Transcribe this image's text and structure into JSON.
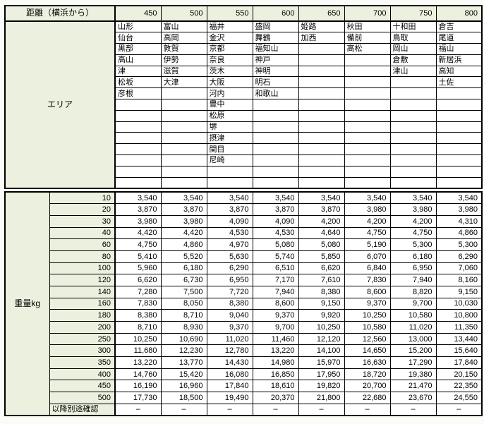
{
  "header": {
    "distance_label": "距離（横浜から）",
    "distances": [
      "450",
      "500",
      "550",
      "600",
      "650",
      "700",
      "750",
      "800"
    ]
  },
  "area": {
    "label": "エリア",
    "rows": [
      [
        "山形",
        "富山",
        "福井",
        "盛岡",
        "姫路",
        "秋田",
        "十和田",
        "倉吉"
      ],
      [
        "仙台",
        "高岡",
        "金沢",
        "舞鶴",
        "加西",
        "備前",
        "鳥取",
        "尾道"
      ],
      [
        "黒部",
        "敦賀",
        "京都",
        "福知山",
        "",
        "高松",
        "岡山",
        "福山"
      ],
      [
        "高山",
        "伊勢",
        "奈良",
        "神戸",
        "",
        "",
        "倉敷",
        "新居浜"
      ],
      [
        "津",
        "滋賀",
        "茨木",
        "神明",
        "",
        "",
        "津山",
        "高知"
      ],
      [
        "松坂",
        "大津",
        "大阪",
        "明石",
        "",
        "",
        "",
        "土佐"
      ],
      [
        "彦根",
        "",
        "河内",
        "和歌山",
        "",
        "",
        "",
        ""
      ],
      [
        "",
        "",
        "豊中",
        "",
        "",
        "",
        "",
        ""
      ],
      [
        "",
        "",
        "松原",
        "",
        "",
        "",
        "",
        ""
      ],
      [
        "",
        "",
        "堺",
        "",
        "",
        "",
        "",
        ""
      ],
      [
        "",
        "",
        "摂津",
        "",
        "",
        "",
        "",
        ""
      ],
      [
        "",
        "",
        "関目",
        "",
        "",
        "",
        "",
        ""
      ],
      [
        "",
        "",
        "尼崎",
        "",
        "",
        "",
        "",
        ""
      ],
      [
        "",
        "",
        "",
        "",
        "",
        "",
        "",
        ""
      ],
      [
        "",
        "",
        "",
        "",
        "",
        "",
        "",
        ""
      ]
    ]
  },
  "weight": {
    "label": "重量kg",
    "rows": [
      {
        "weight": "10",
        "values": [
          "3,540",
          "3,540",
          "3,540",
          "3,540",
          "3,540",
          "3,540",
          "3,540",
          "3,540"
        ]
      },
      {
        "weight": "20",
        "values": [
          "3,870",
          "3,870",
          "3,870",
          "3,870",
          "3,870",
          "3,980",
          "3,980",
          "3,980"
        ]
      },
      {
        "weight": "30",
        "values": [
          "3,980",
          "3,980",
          "4,090",
          "4,090",
          "4,200",
          "4,200",
          "4,200",
          "4,310"
        ]
      },
      {
        "weight": "40",
        "values": [
          "4,420",
          "4,420",
          "4,530",
          "4,530",
          "4,640",
          "4,750",
          "4,750",
          "4,860"
        ]
      },
      {
        "weight": "60",
        "values": [
          "4,750",
          "4,860",
          "4,970",
          "5,080",
          "5,080",
          "5,190",
          "5,300",
          "5,300"
        ]
      },
      {
        "weight": "80",
        "values": [
          "5,410",
          "5,520",
          "5,630",
          "5,740",
          "5,850",
          "6,070",
          "6,180",
          "6,290"
        ]
      },
      {
        "weight": "100",
        "values": [
          "5,960",
          "6,180",
          "6,290",
          "6,510",
          "6,620",
          "6,840",
          "6,950",
          "7,060"
        ]
      },
      {
        "weight": "120",
        "values": [
          "6,620",
          "6,730",
          "6,950",
          "7,170",
          "7,610",
          "7,830",
          "7,940",
          "8,160"
        ]
      },
      {
        "weight": "140",
        "values": [
          "7,280",
          "7,500",
          "7,720",
          "7,940",
          "8,380",
          "8,600",
          "8,820",
          "9,150"
        ]
      },
      {
        "weight": "160",
        "values": [
          "7,830",
          "8,050",
          "8,380",
          "8,600",
          "9,150",
          "9,370",
          "9,700",
          "10,030"
        ]
      },
      {
        "weight": "180",
        "values": [
          "8,380",
          "8,710",
          "9,040",
          "9,370",
          "9,920",
          "10,250",
          "10,580",
          "10,800"
        ]
      },
      {
        "weight": "200",
        "values": [
          "8,710",
          "8,930",
          "9,370",
          "9,700",
          "10,250",
          "10,580",
          "11,020",
          "11,350"
        ]
      },
      {
        "weight": "250",
        "values": [
          "10,250",
          "10,690",
          "11,020",
          "11,460",
          "12,120",
          "12,560",
          "13,000",
          "13,440"
        ]
      },
      {
        "weight": "300",
        "values": [
          "11,680",
          "12,230",
          "12,780",
          "13,220",
          "14,100",
          "14,650",
          "15,200",
          "15,640"
        ]
      },
      {
        "weight": "350",
        "values": [
          "13,220",
          "13,770",
          "14,430",
          "14,980",
          "15,970",
          "16,630",
          "17,290",
          "17,840"
        ]
      },
      {
        "weight": "400",
        "values": [
          "14,760",
          "15,420",
          "16,080",
          "16,850",
          "17,950",
          "18,720",
          "19,380",
          "20,150"
        ]
      },
      {
        "weight": "450",
        "values": [
          "16,190",
          "16,960",
          "17,840",
          "18,610",
          "19,820",
          "20,700",
          "21,470",
          "22,350"
        ]
      },
      {
        "weight": "500",
        "values": [
          "17,730",
          "18,500",
          "19,490",
          "20,370",
          "21,800",
          "22,680",
          "23,670",
          "24,550"
        ]
      }
    ],
    "last_row": {
      "label": "以降別途確認",
      "values": [
        "–",
        "–",
        "–",
        "–",
        "–",
        "–",
        "–",
        "–"
      ]
    }
  },
  "colors": {
    "header_bg": "#ebf1de",
    "cell_bg": "#ffffff",
    "border": "#000000",
    "page_bg": "#fbfbf8"
  }
}
